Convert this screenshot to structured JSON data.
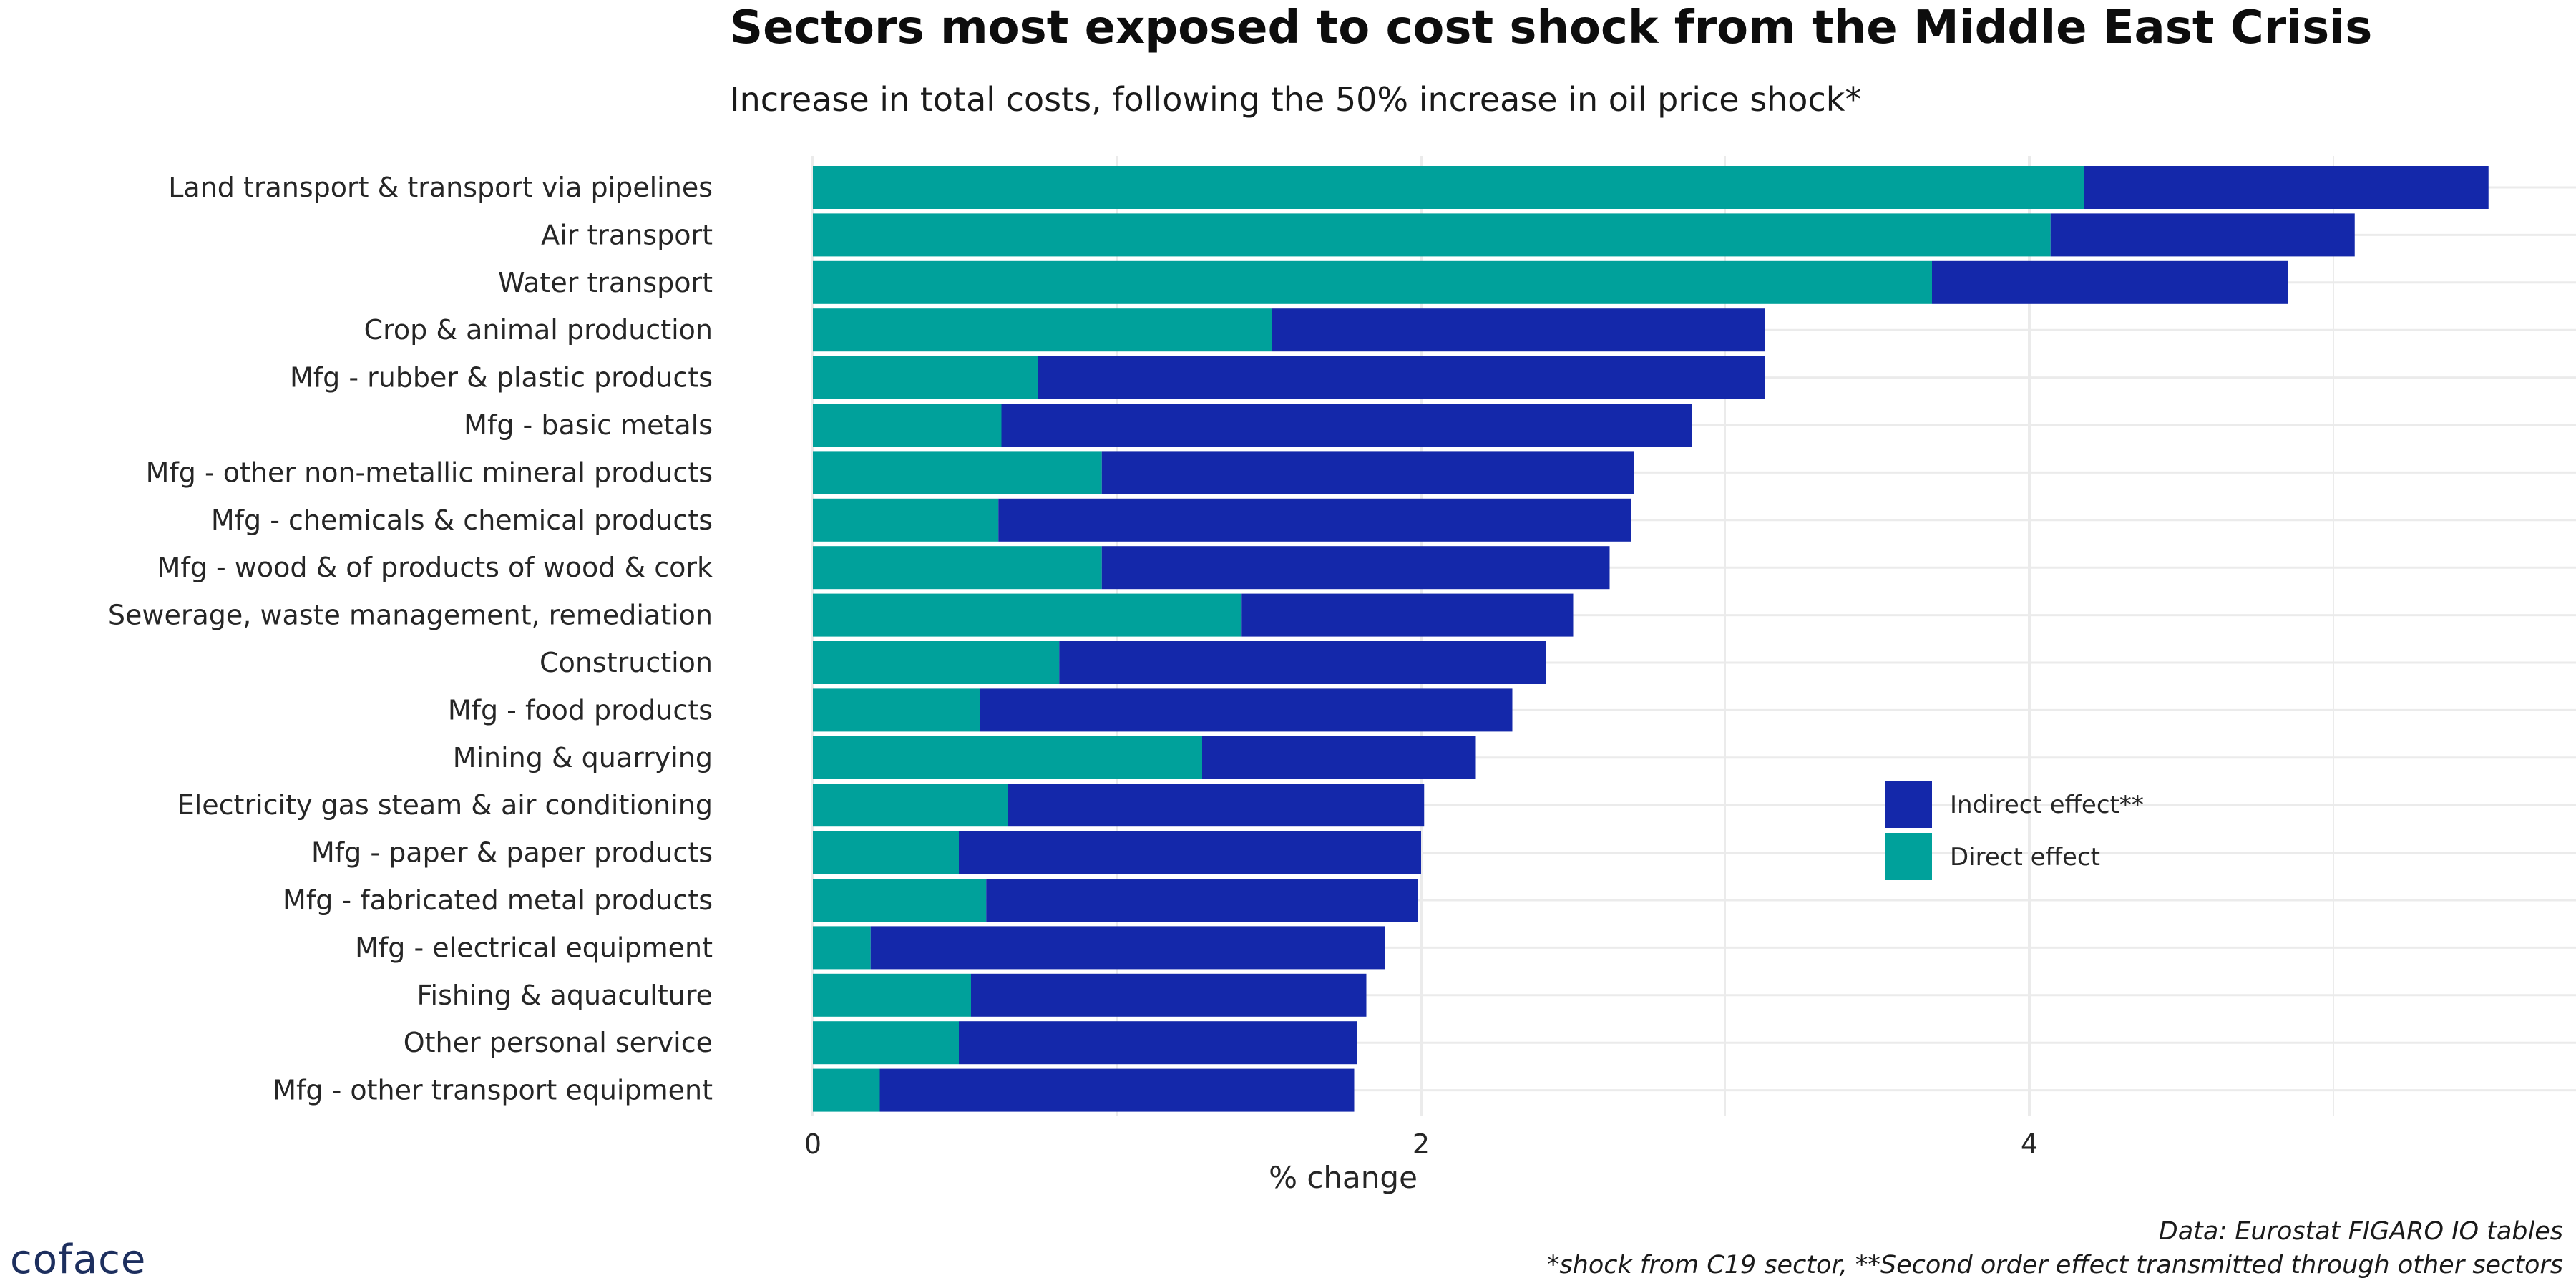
{
  "title": "Sectors most exposed to cost shock from the Middle East Crisis",
  "subtitle": "Increase in total costs, following the 50% increase in oil price shock*",
  "caption": {
    "line1": "Data: Eurostat FIGARO IO tables",
    "line2": "*shock from C19 sector, **Second order effect transmitted through other sectors"
  },
  "logo_text": "coface",
  "colors": {
    "direct": "#00a19b",
    "indirect": "#1428aa",
    "grid": "#ebebeb"
  },
  "chart_data": {
    "type": "bar",
    "orientation": "horizontal",
    "stacked": true,
    "title": "Sectors most exposed to cost shock from the Middle East Crisis",
    "subtitle": "Increase in total costs, following the 50% increase in oil price shock*",
    "xlabel": "% change",
    "ylabel": "",
    "xlim": [
      0,
      5.9
    ],
    "xticks": [
      0,
      2,
      4
    ],
    "grid": true,
    "legend_position": "right",
    "legend": [
      "Indirect effect**",
      "Direct effect"
    ],
    "categories": [
      "Land transport & transport via pipelines",
      "Air transport",
      "Water transport",
      "Crop & animal production",
      "Mfg - rubber & plastic products",
      "Mfg - basic metals",
      "Mfg - other non-metallic mineral products",
      "Mfg - chemicals & chemical products",
      "Mfg - wood & of products of wood & cork",
      "Sewerage, waste management, remediation",
      "Construction",
      "Mfg - food products",
      "Mining & quarrying",
      "Electricity gas steam & air conditioning",
      "Mfg - paper & paper products",
      "Mfg - fabricated metal products",
      "Mfg - electrical equipment",
      "Fishing & aquaculture",
      "Other personal service",
      "Mfg - other transport equipment"
    ],
    "series": [
      {
        "name": "Direct effect",
        "values": [
          4.18,
          4.07,
          3.68,
          1.51,
          0.74,
          0.62,
          0.95,
          0.61,
          0.95,
          1.41,
          0.81,
          0.55,
          1.28,
          0.64,
          0.48,
          0.57,
          0.19,
          0.52,
          0.48,
          0.22
        ]
      },
      {
        "name": "Indirect effect**",
        "values": [
          1.33,
          1.0,
          1.17,
          1.62,
          2.39,
          2.27,
          1.75,
          2.08,
          1.67,
          1.09,
          1.6,
          1.75,
          0.9,
          1.37,
          1.52,
          1.42,
          1.69,
          1.3,
          1.31,
          1.56
        ]
      }
    ]
  }
}
